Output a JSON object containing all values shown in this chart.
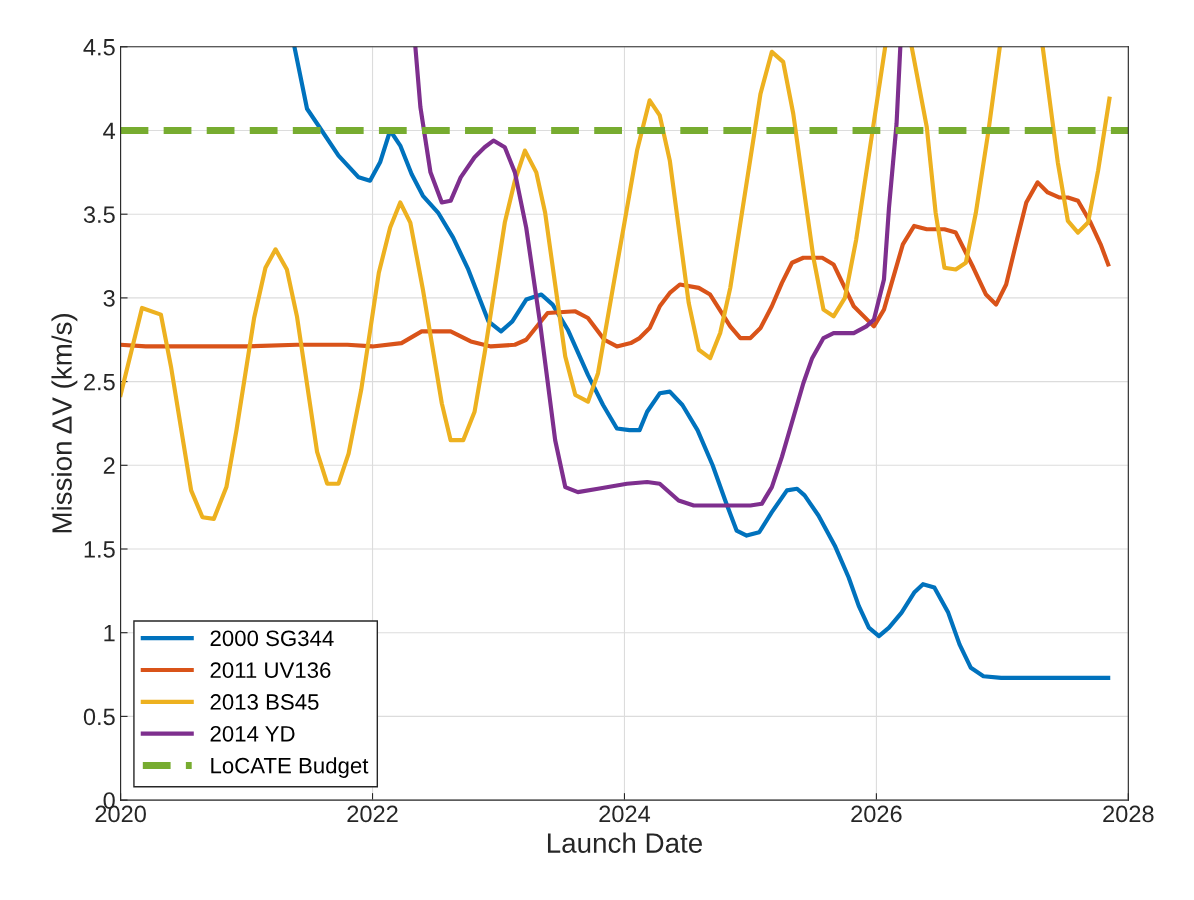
{
  "chart_data": {
    "type": "line",
    "xlabel": "Launch Date",
    "ylabel": "Mission ΔV (km/s)",
    "xlim": [
      2020,
      2028
    ],
    "xticks": [
      2020,
      2022,
      2024,
      2026,
      2028
    ],
    "ylim": [
      0,
      4.5
    ],
    "yticks": [
      0,
      0.5,
      1,
      1.5,
      2,
      2.5,
      3,
      3.5,
      4,
      4.5
    ],
    "grid": true,
    "legend": "bottom left",
    "marker": "none",
    "series": [
      {
        "name": "2000 SG344",
        "color": "#0072bd",
        "x": [
          2021.38,
          2021.48,
          2021.57,
          2021.73,
          2021.89,
          2021.98,
          2022.06,
          2022.14,
          2022.22,
          2022.31,
          2022.4,
          2022.52,
          2022.64,
          2022.76,
          2022.92,
          2023.02,
          2023.11,
          2023.22,
          2023.34,
          2023.43,
          2023.55,
          2023.71,
          2023.83,
          2023.94,
          2024.04,
          2024.12,
          2024.18,
          2024.28,
          2024.36,
          2024.46,
          2024.58,
          2024.7,
          2024.8,
          2024.89,
          2024.97,
          2025.07,
          2025.17,
          2025.29,
          2025.37,
          2025.43,
          2025.54,
          2025.67,
          2025.78,
          2025.86,
          2025.94,
          2026.02,
          2026.1,
          2026.2,
          2026.3,
          2026.37,
          2026.46,
          2026.57,
          2026.66,
          2026.75,
          2026.85,
          2026.99,
          2027.34,
          2027.58,
          2027.84
        ],
        "values": [
          4.5,
          4.13,
          4.03,
          3.85,
          3.72,
          3.7,
          3.81,
          4.0,
          3.91,
          3.74,
          3.61,
          3.51,
          3.36,
          3.17,
          2.86,
          2.8,
          2.86,
          2.99,
          3.02,
          2.96,
          2.81,
          2.54,
          2.36,
          2.22,
          2.21,
          2.21,
          2.32,
          2.43,
          2.44,
          2.36,
          2.21,
          2.0,
          1.79,
          1.61,
          1.58,
          1.6,
          1.72,
          1.85,
          1.86,
          1.82,
          1.7,
          1.52,
          1.33,
          1.16,
          1.03,
          0.98,
          1.03,
          1.12,
          1.24,
          1.29,
          1.27,
          1.12,
          0.93,
          0.79,
          0.74,
          0.73,
          0.73,
          0.73,
          0.73
        ]
      },
      {
        "name": "2011 UV136",
        "color": "#d95319",
        "x": [
          2020.0,
          2020.2,
          2020.6,
          2021.0,
          2021.4,
          2021.8,
          2022.0,
          2022.23,
          2022.39,
          2022.62,
          2022.78,
          2022.94,
          2023.13,
          2023.22,
          2023.39,
          2023.61,
          2023.71,
          2023.84,
          2023.94,
          2024.05,
          2024.12,
          2024.2,
          2024.28,
          2024.36,
          2024.44,
          2024.59,
          2024.68,
          2024.84,
          2024.92,
          2025.0,
          2025.08,
          2025.17,
          2025.25,
          2025.33,
          2025.42,
          2025.57,
          2025.66,
          2025.82,
          2025.98,
          2026.06,
          2026.21,
          2026.3,
          2026.4,
          2026.54,
          2026.63,
          2026.77,
          2026.87,
          2026.95,
          2027.03,
          2027.12,
          2027.19,
          2027.28,
          2027.36,
          2027.45,
          2027.52,
          2027.6,
          2027.7,
          2027.78,
          2027.84
        ],
        "values": [
          2.72,
          2.71,
          2.71,
          2.71,
          2.72,
          2.72,
          2.71,
          2.73,
          2.8,
          2.8,
          2.74,
          2.71,
          2.72,
          2.75,
          2.91,
          2.92,
          2.88,
          2.75,
          2.71,
          2.73,
          2.76,
          2.82,
          2.95,
          3.03,
          3.08,
          3.06,
          3.02,
          2.83,
          2.76,
          2.76,
          2.82,
          2.95,
          3.09,
          3.21,
          3.24,
          3.24,
          3.2,
          2.95,
          2.83,
          2.93,
          3.32,
          3.43,
          3.41,
          3.41,
          3.39,
          3.18,
          3.02,
          2.96,
          3.08,
          3.36,
          3.57,
          3.69,
          3.63,
          3.6,
          3.6,
          3.58,
          3.45,
          3.32,
          3.2
        ]
      },
      {
        "name": "2013 BS45",
        "color": "#edb120",
        "x": [
          2020.0,
          2020.17,
          2020.32,
          2020.4,
          2020.56,
          2020.65,
          2020.74,
          2020.84,
          2020.92,
          2021.06,
          2021.15,
          2021.23,
          2021.32,
          2021.4,
          2021.56,
          2021.64,
          2021.73,
          2021.81,
          2021.91,
          2022.05,
          2022.14,
          2022.22,
          2022.3,
          2022.4,
          2022.55,
          2022.62,
          2022.72,
          2022.81,
          2022.89,
          2023.05,
          2023.13,
          2023.21,
          2023.3,
          2023.37,
          2023.53,
          2023.61,
          2023.71,
          2023.79,
          2023.92,
          2024.0,
          2024.1,
          2024.2,
          2024.28,
          2024.36,
          2024.51,
          2024.59,
          2024.68,
          2024.76,
          2024.84,
          2025.08,
          2025.17,
          2025.26,
          2025.34,
          2025.5,
          2025.58,
          2025.66,
          2025.75,
          2025.84,
          2026.07,
          2026.17,
          2026.28,
          2026.4,
          2026.47,
          2026.54,
          2026.63,
          2026.71,
          2026.79,
          2026.89,
          2026.98,
          2027.15,
          2027.32,
          2027.44,
          2027.52,
          2027.6,
          2027.68,
          2027.76,
          2027.85
        ],
        "values": [
          2.42,
          2.94,
          2.9,
          2.59,
          1.85,
          1.69,
          1.68,
          1.87,
          2.21,
          2.88,
          3.18,
          3.29,
          3.17,
          2.89,
          2.08,
          1.89,
          1.89,
          2.07,
          2.45,
          3.15,
          3.42,
          3.57,
          3.45,
          3.05,
          2.37,
          2.15,
          2.15,
          2.32,
          2.67,
          3.45,
          3.7,
          3.88,
          3.75,
          3.51,
          2.65,
          2.42,
          2.38,
          2.55,
          3.11,
          3.45,
          3.88,
          4.18,
          4.09,
          3.82,
          2.97,
          2.69,
          2.64,
          2.79,
          3.06,
          4.22,
          4.47,
          4.41,
          4.1,
          3.24,
          2.93,
          2.89,
          3.0,
          3.35,
          4.5,
          null,
          4.5,
          4.02,
          3.51,
          3.18,
          3.17,
          3.21,
          3.51,
          4.0,
          4.5,
          null,
          4.5,
          3.81,
          3.46,
          3.39,
          3.45,
          3.76,
          4.19
        ]
      },
      {
        "name": "2014 YD",
        "color": "#7e2f8e",
        "x": [
          2022.34,
          2022.38,
          2022.46,
          2022.55,
          2022.62,
          2022.7,
          2022.81,
          2022.89,
          2022.96,
          2023.05,
          2023.13,
          2023.22,
          2023.33,
          2023.45,
          2023.53,
          2023.63,
          2023.79,
          2024.02,
          2024.18,
          2024.28,
          2024.43,
          2024.55,
          2024.81,
          2025.0,
          2025.09,
          2025.17,
          2025.25,
          2025.42,
          2025.49,
          2025.58,
          2025.66,
          2025.82,
          2025.92,
          2025.98,
          2026.06,
          2026.1,
          2026.16,
          2026.19
        ],
        "values": [
          4.5,
          4.14,
          3.75,
          3.57,
          3.58,
          3.72,
          3.84,
          3.9,
          3.94,
          3.9,
          3.75,
          3.42,
          2.85,
          2.15,
          1.87,
          1.84,
          1.86,
          1.89,
          1.9,
          1.89,
          1.79,
          1.76,
          1.76,
          1.76,
          1.77,
          1.87,
          2.05,
          2.49,
          2.64,
          2.76,
          2.79,
          2.79,
          2.83,
          2.87,
          3.11,
          3.54,
          4.04,
          4.5
        ]
      },
      {
        "name": "LoCATE Budget",
        "color": "#77ac30",
        "line_style": "dashed",
        "x": [
          2020,
          2028
        ],
        "values": [
          4,
          4
        ]
      }
    ]
  }
}
